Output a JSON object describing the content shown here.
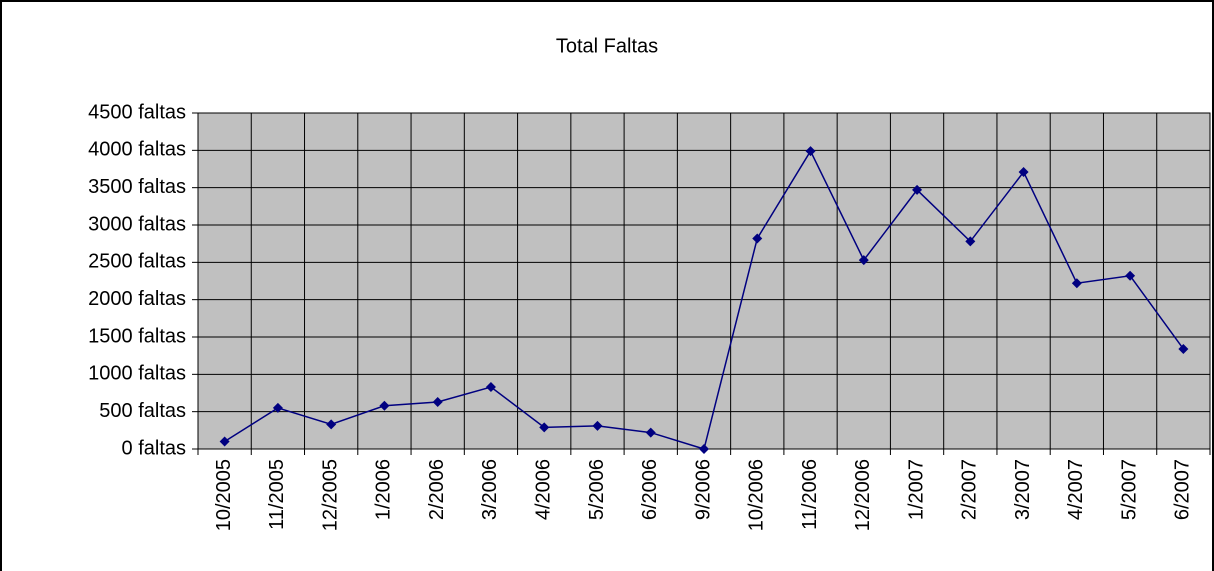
{
  "chart_data": {
    "type": "line",
    "title": "Total Faltas",
    "categories": [
      "10/2005",
      "11/2005",
      "12/2005",
      "1/2006",
      "2/2006",
      "3/2006",
      "4/2006",
      "5/2006",
      "6/2006",
      "9/2006",
      "10/2006",
      "11/2006",
      "12/2006",
      "1/2007",
      "2/2007",
      "3/2007",
      "4/2007",
      "5/2007",
      "6/2007"
    ],
    "series": [
      {
        "name": "Total Faltas",
        "color": "#000080",
        "values": [
          100,
          550,
          330,
          580,
          630,
          830,
          290,
          310,
          220,
          0,
          2820,
          3990,
          2530,
          3470,
          2780,
          3710,
          2220,
          2320,
          1340
        ]
      }
    ],
    "ylim": [
      0,
      4500
    ],
    "yticks": [
      {
        "value": 0,
        "label": "0 faltas"
      },
      {
        "value": 500,
        "label": "500 faltas"
      },
      {
        "value": 1000,
        "label": "1000 faltas"
      },
      {
        "value": 1500,
        "label": "1500 faltas"
      },
      {
        "value": 2000,
        "label": "2000 faltas"
      },
      {
        "value": 2500,
        "label": "2500 faltas"
      },
      {
        "value": 3000,
        "label": "3000 faltas"
      },
      {
        "value": 3500,
        "label": "3500 faltas"
      },
      {
        "value": 4000,
        "label": "4000 faltas"
      },
      {
        "value": 4500,
        "label": "4500 faltas"
      }
    ],
    "grid": true
  }
}
